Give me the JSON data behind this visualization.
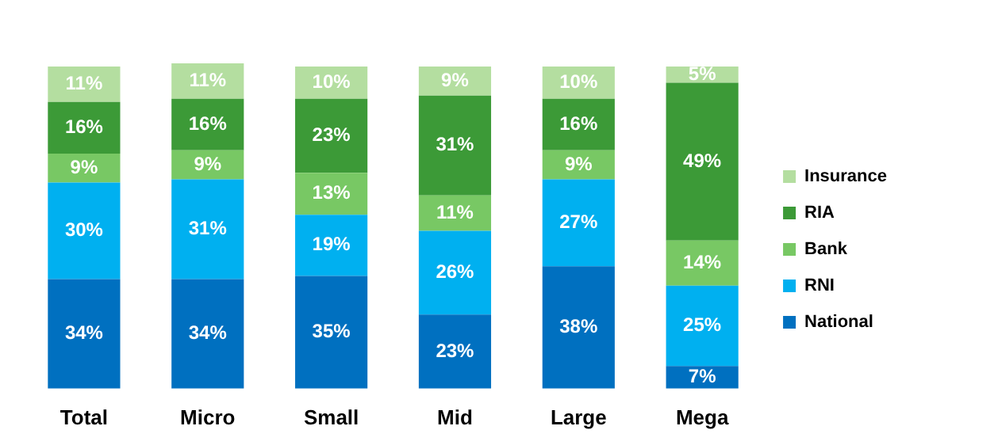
{
  "chart_data": {
    "type": "bar",
    "stacked": true,
    "legend": "right",
    "tick_labels": "x",
    "categories": [
      "Total",
      "Micro",
      "Small",
      "Mid",
      "Large",
      "Mega"
    ],
    "series": [
      {
        "name": "National",
        "color": "#0070c0",
        "values": [
          34,
          34,
          35,
          23,
          38,
          7
        ],
        "value_labels": [
          "34%",
          "34%",
          "35%",
          "23%",
          "38%",
          "7%"
        ]
      },
      {
        "name": "RNI",
        "color": "#00b0f0",
        "values": [
          30,
          31,
          19,
          26,
          27,
          25
        ],
        "value_labels": [
          "30%",
          "31%",
          "19%",
          "26%",
          "27%",
          "25%"
        ]
      },
      {
        "name": "Bank",
        "color": "#78c864",
        "values": [
          9,
          9,
          13,
          11,
          9,
          14
        ],
        "value_labels": [
          "9%",
          "9%",
          "13%",
          "11%",
          "9%",
          "14%"
        ]
      },
      {
        "name": "RIA",
        "color": "#3c9a37",
        "values": [
          16,
          16,
          23,
          31,
          16,
          49
        ],
        "value_labels": [
          "16%",
          "16%",
          "23%",
          "31%",
          "16%",
          "49%"
        ]
      },
      {
        "name": "Insurance",
        "color": "#b4dea0",
        "values": [
          11,
          11,
          10,
          9,
          10,
          5
        ],
        "value_labels": [
          "11%",
          "11%",
          "10%",
          "9%",
          "10%",
          "5%"
        ]
      }
    ]
  }
}
